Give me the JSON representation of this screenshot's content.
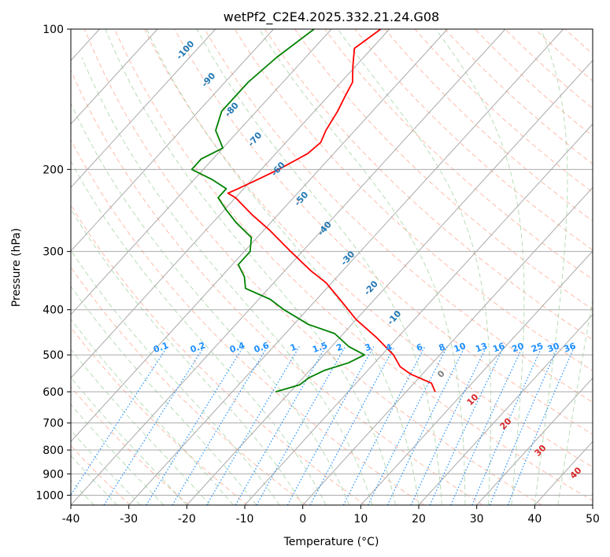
{
  "chart_data": {
    "type": "line",
    "title": "wetPf2_C2E4.2025.332.21.24.G08",
    "xlabel": "Temperature (°C)",
    "ylabel": "Pressure (hPa)",
    "xlim": [
      -40,
      50
    ],
    "ylim": [
      1050,
      100
    ],
    "y_scale": "log",
    "x_ticks": [
      -40,
      -30,
      -20,
      -10,
      0,
      10,
      20,
      30,
      40,
      50
    ],
    "y_ticks": [
      1000,
      900,
      800,
      700,
      600,
      500,
      400,
      300,
      200,
      100
    ],
    "grid": true,
    "skew": "skew-T log-p",
    "series": [
      {
        "color": "#ff0000",
        "points": [
          {
            "p": 100,
            "t": -61.5
          },
          {
            "p": 110,
            "t": -63
          },
          {
            "p": 120,
            "t": -60.5
          },
          {
            "p": 130,
            "t": -58
          },
          {
            "p": 140,
            "t": -57
          },
          {
            "p": 150,
            "t": -56
          },
          {
            "p": 165,
            "t": -55
          },
          {
            "p": 175,
            "t": -54
          },
          {
            "p": 185,
            "t": -54.5
          },
          {
            "p": 200,
            "t": -57
          },
          {
            "p": 210,
            "t": -59
          },
          {
            "p": 220,
            "t": -61
          },
          {
            "p": 225,
            "t": -62
          },
          {
            "p": 230,
            "t": -60
          },
          {
            "p": 250,
            "t": -54.5
          },
          {
            "p": 270,
            "t": -49
          },
          {
            "p": 300,
            "t": -42
          },
          {
            "p": 330,
            "t": -35.5
          },
          {
            "p": 350,
            "t": -31
          },
          {
            "p": 380,
            "t": -26
          },
          {
            "p": 420,
            "t": -20
          },
          {
            "p": 460,
            "t": -13.5
          },
          {
            "p": 500,
            "t": -8
          },
          {
            "p": 530,
            "t": -5
          },
          {
            "p": 550,
            "t": -2
          },
          {
            "p": 575,
            "t": 3
          },
          {
            "p": 600,
            "t": 5
          }
        ]
      },
      {
        "color": "#008000",
        "points": [
          {
            "p": 100,
            "t": -73
          },
          {
            "p": 115,
            "t": -75
          },
          {
            "p": 130,
            "t": -76
          },
          {
            "p": 150,
            "t": -76
          },
          {
            "p": 165,
            "t": -74
          },
          {
            "p": 180,
            "t": -70
          },
          {
            "p": 190,
            "t": -72
          },
          {
            "p": 200,
            "t": -72
          },
          {
            "p": 210,
            "t": -67
          },
          {
            "p": 220,
            "t": -63
          },
          {
            "p": 230,
            "t": -63
          },
          {
            "p": 245,
            "t": -59.5
          },
          {
            "p": 260,
            "t": -56
          },
          {
            "p": 280,
            "t": -51
          },
          {
            "p": 300,
            "t": -49
          },
          {
            "p": 320,
            "t": -49
          },
          {
            "p": 340,
            "t": -46
          },
          {
            "p": 360,
            "t": -44
          },
          {
            "p": 380,
            "t": -38
          },
          {
            "p": 400,
            "t": -34
          },
          {
            "p": 430,
            "t": -27.5
          },
          {
            "p": 450,
            "t": -21.5
          },
          {
            "p": 480,
            "t": -17
          },
          {
            "p": 500,
            "t": -13
          },
          {
            "p": 520,
            "t": -14.5
          },
          {
            "p": 540,
            "t": -17.5
          },
          {
            "p": 560,
            "t": -19
          },
          {
            "p": 580,
            "t": -19.5
          },
          {
            "p": 600,
            "t": -22.5
          }
        ]
      }
    ],
    "dry_adiabat_labels": [
      "-100",
      "-90",
      "-80",
      "-70",
      "-60",
      "-50",
      "-40",
      "-30",
      "-20",
      "-10"
    ],
    "mixing_ratio_labels": [
      "0.1",
      "0.2",
      "0.4",
      "0.6",
      "1",
      "1.5",
      "2",
      "3",
      "4",
      "6",
      "8",
      "10",
      "13",
      "16",
      "20",
      "25",
      "30",
      "36"
    ],
    "moist_adiabat_labels": [
      "0",
      "10",
      "20",
      "30",
      "40"
    ],
    "colors": {
      "temperature": "#ff0000",
      "dewpoint": "#008000",
      "dry_adiabat_label": "#1f77b4",
      "mixing_ratio": "#1e90ff",
      "moist_adiabat_label": "#d62728",
      "zero_label": "#808080"
    }
  }
}
